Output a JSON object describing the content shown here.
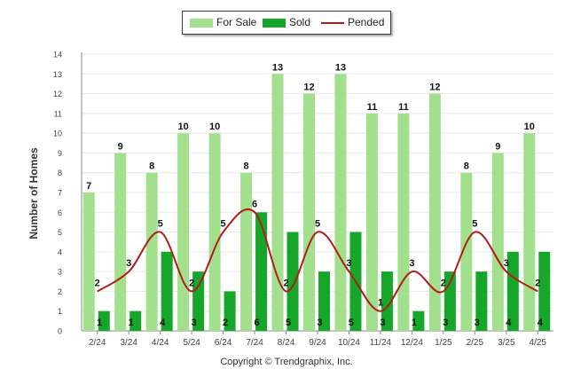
{
  "legend": {
    "for_sale": "For Sale",
    "sold": "Sold",
    "pended": "Pended"
  },
  "copyright": "Copyright © Trendgraphix, Inc.",
  "colors": {
    "for_sale": "#a3e08e",
    "sold": "#16a72a",
    "pended": "#b31b1b",
    "grid": "#e8e8e8",
    "axis": "#888888"
  },
  "chart_data": {
    "type": "bar",
    "title": "",
    "xlabel": "",
    "ylabel": "Number of Homes",
    "ylim": [
      0,
      14
    ],
    "yticks": [
      0,
      1,
      2,
      3,
      4,
      5,
      6,
      7,
      8,
      9,
      10,
      11,
      12,
      13,
      14
    ],
    "grid": true,
    "legend_position": "top-center",
    "categories": [
      "2/24",
      "3/24",
      "4/24",
      "5/24",
      "6/24",
      "7/24",
      "8/24",
      "9/24",
      "10/24",
      "11/24",
      "12/24",
      "1/25",
      "2/25",
      "3/25",
      "4/25"
    ],
    "series": [
      {
        "name": "For Sale",
        "type": "bar",
        "values": [
          7,
          9,
          8,
          10,
          10,
          8,
          13,
          12,
          13,
          11,
          11,
          12,
          8,
          9,
          10
        ]
      },
      {
        "name": "Sold",
        "type": "bar",
        "values": [
          1,
          1,
          4,
          3,
          2,
          6,
          5,
          3,
          5,
          3,
          1,
          3,
          3,
          4,
          4
        ]
      },
      {
        "name": "Pended",
        "type": "line",
        "values": [
          2,
          3,
          5,
          2,
          5,
          6,
          2,
          5,
          3,
          1,
          3,
          2,
          5,
          3,
          2
        ]
      }
    ]
  }
}
